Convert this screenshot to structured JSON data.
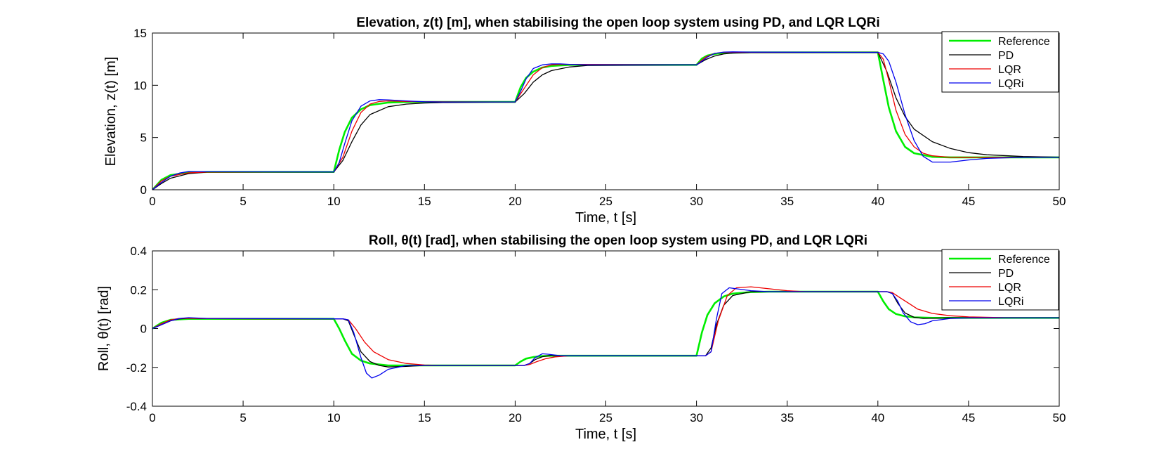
{
  "chart_data": [
    {
      "id": "elevation",
      "type": "line",
      "title": "Elevation, z(t) [m], when stabilising the open loop system using PD, and LQR LQRi",
      "xlabel": "Time, t [s]",
      "ylabel": "Elevation, z(t) [m]",
      "xlim": [
        0,
        50
      ],
      "ylim": [
        0,
        15
      ],
      "xticks": [
        0,
        5,
        10,
        15,
        20,
        25,
        30,
        35,
        40,
        45,
        50
      ],
      "yticks": [
        0,
        5,
        10,
        15
      ],
      "grid": false,
      "legend": "top-right",
      "series": [
        {
          "name": "Reference",
          "color": "#00ee00",
          "width": 2.6,
          "x": [
            0,
            0.5,
            1,
            2,
            3,
            10,
            10.3,
            10.6,
            11,
            11.5,
            12,
            13,
            14,
            20,
            20.3,
            20.6,
            21,
            21.5,
            22,
            23,
            30,
            30.3,
            30.6,
            31,
            31.5,
            32,
            33,
            40,
            40.3,
            40.6,
            41,
            41.5,
            42,
            43,
            44,
            45,
            50
          ],
          "y": [
            0,
            0.95,
            1.4,
            1.65,
            1.7,
            1.7,
            3.8,
            5.5,
            6.9,
            7.7,
            8.1,
            8.35,
            8.4,
            8.4,
            9.8,
            10.7,
            11.3,
            11.7,
            11.85,
            11.95,
            11.95,
            12.55,
            12.85,
            13.0,
            13.08,
            13.12,
            13.15,
            13.15,
            10.5,
            7.9,
            5.6,
            4.1,
            3.5,
            3.15,
            3.1,
            3.1,
            3.1
          ]
        },
        {
          "name": "PD",
          "color": "#000000",
          "width": 1.3,
          "x": [
            0,
            0.5,
            1,
            2,
            3,
            10,
            10.5,
            11,
            11.5,
            12,
            13,
            14,
            15,
            16,
            20,
            20.5,
            21,
            21.5,
            22,
            23,
            24,
            30,
            30.5,
            31,
            31.5,
            32,
            33,
            40,
            40.5,
            41,
            41.5,
            42,
            43,
            44,
            45,
            46,
            48,
            50
          ],
          "y": [
            0,
            0.6,
            1.1,
            1.55,
            1.68,
            1.7,
            2.8,
            4.6,
            6.2,
            7.2,
            7.95,
            8.2,
            8.3,
            8.35,
            8.4,
            9.2,
            10.3,
            11.0,
            11.4,
            11.75,
            11.9,
            11.95,
            12.45,
            12.8,
            13.0,
            13.08,
            13.13,
            13.15,
            11.3,
            8.8,
            7.0,
            5.8,
            4.6,
            3.95,
            3.55,
            3.35,
            3.18,
            3.12
          ]
        },
        {
          "name": "LQR",
          "color": "#ee0000",
          "width": 1.3,
          "x": [
            0,
            0.5,
            1,
            2,
            3,
            10,
            10.5,
            11,
            11.5,
            12,
            12.5,
            13,
            14,
            15,
            20,
            20.5,
            21,
            21.5,
            22,
            22.5,
            23,
            30,
            30.5,
            31,
            31.5,
            32,
            33,
            40,
            40.3,
            40.6,
            41,
            41.5,
            42,
            42.5,
            43,
            44,
            45,
            47,
            50
          ],
          "y": [
            0,
            0.85,
            1.3,
            1.62,
            1.69,
            1.7,
            3.1,
            5.6,
            7.4,
            8.2,
            8.45,
            8.5,
            8.45,
            8.42,
            8.4,
            9.7,
            11.0,
            11.7,
            11.95,
            12.0,
            12.0,
            11.95,
            12.7,
            13.05,
            13.15,
            13.16,
            13.15,
            13.15,
            12.5,
            10.5,
            7.6,
            5.3,
            4.1,
            3.5,
            3.25,
            3.1,
            3.08,
            3.1,
            3.1
          ]
        },
        {
          "name": "LQRi",
          "color": "#0000ee",
          "width": 1.3,
          "x": [
            0,
            0.5,
            1,
            1.5,
            2,
            3,
            10,
            10.3,
            10.6,
            11,
            11.5,
            12,
            12.5,
            13,
            14,
            15,
            16,
            20,
            20.3,
            20.6,
            21,
            21.5,
            22,
            22.5,
            23,
            24,
            30,
            30.3,
            30.6,
            31,
            31.5,
            32,
            33,
            40,
            40.3,
            40.6,
            41,
            41.5,
            42,
            42.5,
            43,
            44,
            45,
            46,
            48,
            50
          ],
          "y": [
            0,
            0.7,
            1.3,
            1.6,
            1.75,
            1.72,
            1.7,
            2.6,
            4.4,
            6.6,
            8.0,
            8.5,
            8.62,
            8.6,
            8.5,
            8.42,
            8.4,
            8.4,
            9.4,
            10.6,
            11.6,
            11.95,
            12.05,
            12.05,
            12.0,
            11.95,
            11.95,
            12.3,
            12.7,
            13.05,
            13.18,
            13.2,
            13.17,
            13.15,
            13.0,
            12.3,
            10.3,
            7.2,
            4.7,
            3.2,
            2.65,
            2.65,
            2.85,
            3.0,
            3.1,
            3.1
          ]
        }
      ]
    },
    {
      "id": "roll",
      "type": "line",
      "title": "Roll, θ(t) [rad], when stabilising the open loop system using PD, and LQR LQRi",
      "xlabel": "Time, t [s]",
      "ylabel": "Roll, θ(t) [rad]",
      "xlim": [
        0,
        50
      ],
      "ylim": [
        -0.4,
        0.4
      ],
      "xticks": [
        0,
        5,
        10,
        15,
        20,
        25,
        30,
        35,
        40,
        45,
        50
      ],
      "yticks": [
        -0.4,
        -0.2,
        0,
        0.2,
        0.4
      ],
      "grid": false,
      "legend": "top-right",
      "series": [
        {
          "name": "Reference",
          "color": "#00ee00",
          "width": 2.6,
          "x": [
            0,
            0.5,
            1,
            2,
            10,
            10.3,
            10.6,
            11,
            11.5,
            12,
            13,
            14,
            20,
            20.3,
            20.6,
            21,
            21.5,
            22,
            30,
            30.3,
            30.6,
            31,
            31.5,
            32,
            33,
            34,
            40,
            40.3,
            40.6,
            41,
            41.5,
            42,
            43,
            50
          ],
          "y": [
            0,
            0.03,
            0.045,
            0.05,
            0.05,
            0.0,
            -0.06,
            -0.13,
            -0.165,
            -0.18,
            -0.19,
            -0.19,
            -0.19,
            -0.17,
            -0.155,
            -0.147,
            -0.142,
            -0.14,
            -0.14,
            -0.02,
            0.07,
            0.13,
            0.165,
            0.18,
            0.188,
            0.19,
            0.19,
            0.14,
            0.1,
            0.075,
            0.063,
            0.058,
            0.055,
            0.055
          ]
        },
        {
          "name": "PD",
          "color": "#000000",
          "width": 1.3,
          "x": [
            0,
            0.5,
            1,
            1.5,
            2,
            3,
            10,
            10.5,
            10.8,
            11.1,
            11.5,
            12,
            12.5,
            13,
            14,
            15,
            20,
            20.5,
            20.8,
            21.1,
            21.5,
            22,
            22.5,
            23,
            30,
            30.5,
            30.8,
            31.1,
            31.5,
            32,
            33,
            34,
            40,
            40.5,
            40.8,
            41.1,
            41.5,
            42,
            42.5,
            43,
            44,
            50
          ],
          "y": [
            0,
            0.02,
            0.04,
            0.05,
            0.053,
            0.051,
            0.05,
            0.05,
            0.04,
            -0.03,
            -0.12,
            -0.17,
            -0.19,
            -0.198,
            -0.195,
            -0.19,
            -0.19,
            -0.19,
            -0.18,
            -0.16,
            -0.145,
            -0.138,
            -0.14,
            -0.14,
            -0.14,
            -0.14,
            -0.1,
            0.02,
            0.12,
            0.17,
            0.19,
            0.19,
            0.19,
            0.19,
            0.18,
            0.13,
            0.08,
            0.058,
            0.052,
            0.053,
            0.055,
            0.055
          ]
        },
        {
          "name": "LQR",
          "color": "#ee0000",
          "width": 1.3,
          "x": [
            0,
            0.5,
            1,
            1.5,
            2,
            3,
            10,
            10.5,
            10.8,
            11.2,
            11.7,
            12.2,
            13,
            14,
            15,
            16,
            20,
            20.5,
            20.8,
            21.2,
            21.7,
            22.2,
            23,
            24,
            30,
            30.5,
            30.8,
            31.2,
            31.7,
            32.2,
            33,
            34,
            35,
            36,
            40,
            40.5,
            40.8,
            41.2,
            41.7,
            42.2,
            43,
            44,
            45,
            47,
            50
          ],
          "y": [
            0,
            0.025,
            0.045,
            0.052,
            0.053,
            0.051,
            0.05,
            0.05,
            0.045,
            0.0,
            -0.07,
            -0.12,
            -0.16,
            -0.18,
            -0.188,
            -0.19,
            -0.19,
            -0.19,
            -0.185,
            -0.17,
            -0.155,
            -0.146,
            -0.14,
            -0.14,
            -0.14,
            -0.14,
            -0.12,
            0.04,
            0.17,
            0.21,
            0.215,
            0.205,
            0.195,
            0.19,
            0.19,
            0.19,
            0.185,
            0.16,
            0.13,
            0.1,
            0.078,
            0.066,
            0.06,
            0.056,
            0.055
          ]
        },
        {
          "name": "LQRi",
          "color": "#0000ee",
          "width": 1.3,
          "x": [
            0,
            0.5,
            1,
            1.5,
            2,
            3,
            10,
            10.5,
            10.8,
            11.1,
            11.5,
            11.8,
            12.1,
            12.5,
            13,
            14,
            15,
            20,
            20.5,
            20.8,
            21.1,
            21.5,
            21.8,
            22.5,
            23,
            30,
            30.5,
            30.8,
            31.1,
            31.4,
            31.8,
            32.2,
            33,
            34,
            40,
            40.5,
            40.8,
            41.1,
            41.4,
            41.8,
            42.2,
            42.6,
            43,
            44,
            45,
            46,
            50
          ],
          "y": [
            0,
            0.02,
            0.04,
            0.052,
            0.056,
            0.052,
            0.05,
            0.05,
            0.045,
            -0.02,
            -0.15,
            -0.23,
            -0.255,
            -0.24,
            -0.21,
            -0.19,
            -0.19,
            -0.19,
            -0.19,
            -0.18,
            -0.15,
            -0.13,
            -0.132,
            -0.14,
            -0.14,
            -0.14,
            -0.14,
            -0.12,
            0.05,
            0.18,
            0.21,
            0.205,
            0.195,
            0.19,
            0.19,
            0.19,
            0.18,
            0.14,
            0.08,
            0.035,
            0.02,
            0.025,
            0.04,
            0.052,
            0.055,
            0.055,
            0.055
          ]
        }
      ]
    }
  ]
}
